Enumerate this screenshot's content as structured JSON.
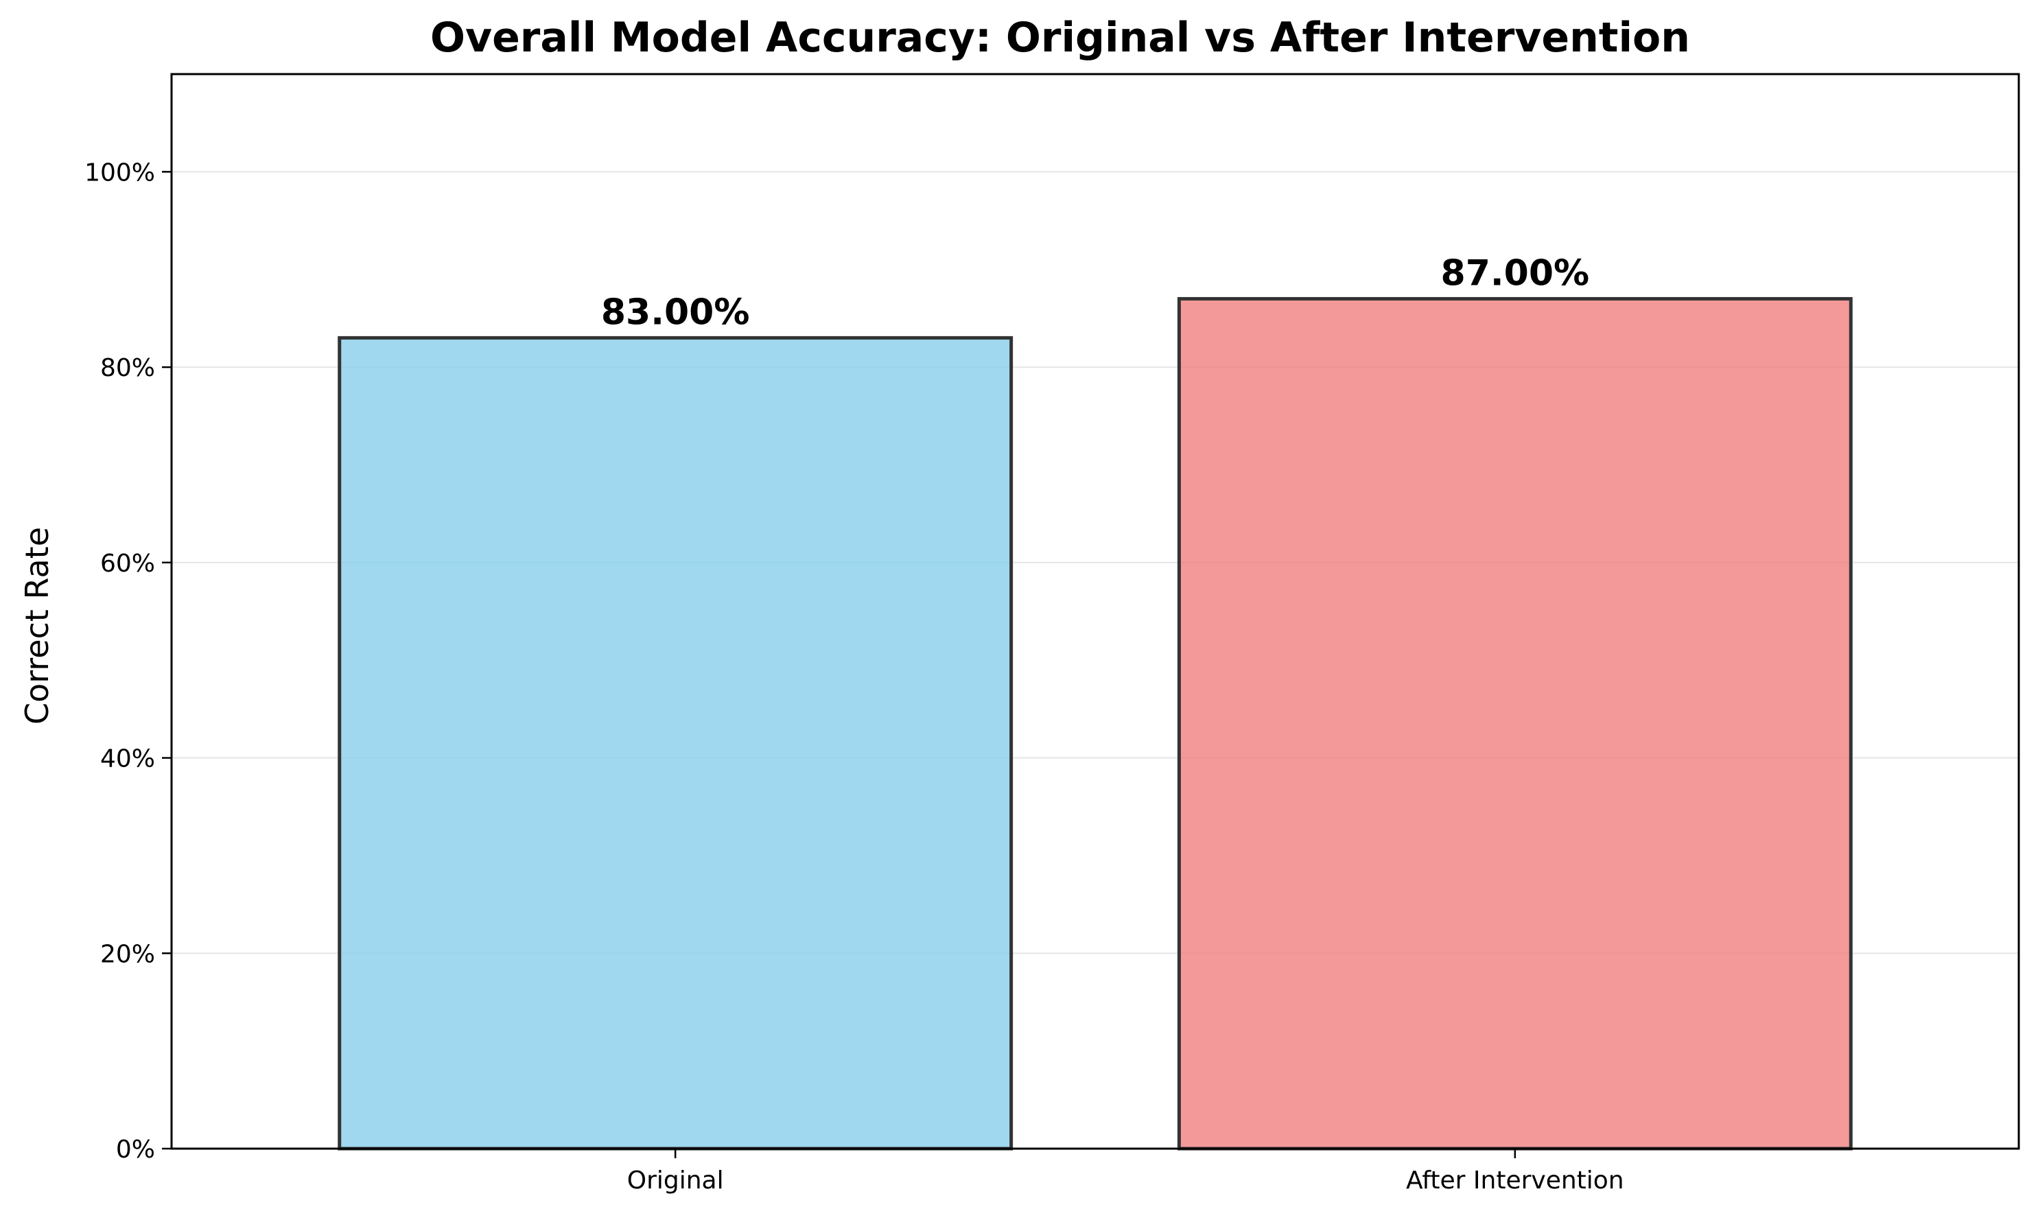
{
  "chart_data": {
    "type": "bar",
    "title": "Overall Model Accuracy: Original vs After Intervention",
    "xlabel": "",
    "ylabel": "Correct Rate",
    "categories": [
      "Original",
      "After Intervention"
    ],
    "values": [
      83.0,
      87.0
    ],
    "data_labels": [
      "83.00%",
      "87.00%"
    ],
    "ylim": [
      0,
      110
    ],
    "yticks": [
      0,
      20,
      40,
      60,
      80,
      100
    ],
    "ytick_labels": [
      "0%",
      "20%",
      "40%",
      "60%",
      "80%",
      "100%"
    ],
    "grid": "y",
    "legend": "none",
    "colors": [
      "#87CEEB",
      "#F08080"
    ],
    "edge_color": "#333333"
  }
}
